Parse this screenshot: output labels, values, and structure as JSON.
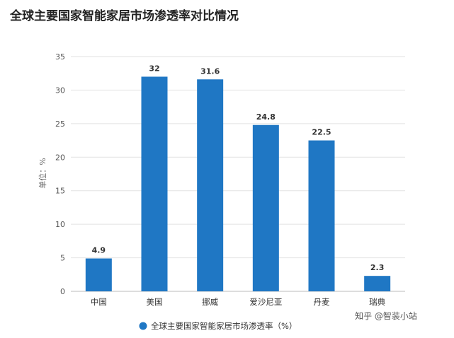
{
  "chart_data": {
    "type": "bar",
    "title": "全球主要国家智能家居市场渗透率对比情况",
    "ylabel": "单位：%",
    "xlabel": "",
    "categories": [
      "中国",
      "美国",
      "挪威",
      "爱沙尼亚",
      "丹麦",
      "瑞典"
    ],
    "series": [
      {
        "name": "全球主要国家智能家居市场渗透率（%）",
        "values": [
          4.9,
          32,
          31.6,
          24.8,
          22.5,
          2.3
        ]
      }
    ],
    "data_labels": [
      "4.9",
      "32",
      "31.6",
      "24.8",
      "22.5",
      "2.3"
    ],
    "ylim": [
      0,
      35
    ],
    "yticks": [
      0,
      5,
      10,
      15,
      20,
      25,
      30,
      35
    ],
    "grid": true,
    "legend_position": "bottom-center",
    "bar_color": "#1f77c4"
  },
  "watermark": {
    "text": "知乎 @智装小站"
  }
}
